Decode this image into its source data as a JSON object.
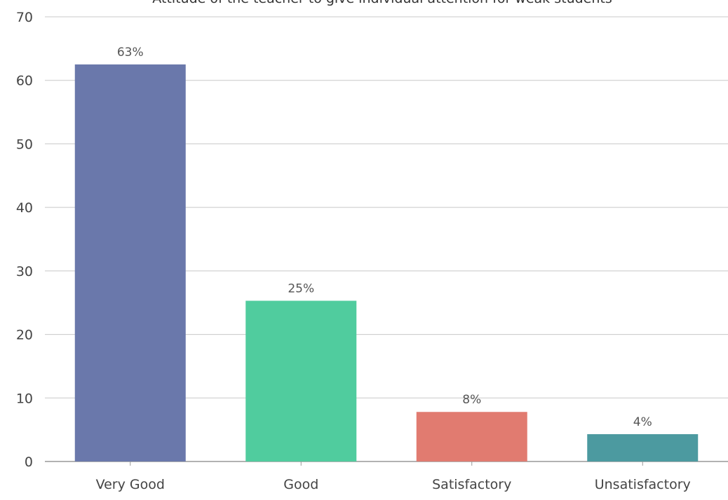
{
  "chart_data": {
    "type": "bar",
    "title": "Attitude of the teacher to give individual attention for weak students",
    "xlabel": "",
    "ylabel": "",
    "categories": [
      "Very Good",
      "Good",
      "Satisfactory",
      "Unsatisfactory"
    ],
    "values": [
      62.5,
      25.3,
      7.8,
      4.3
    ],
    "data_labels": [
      "63%",
      "25%",
      "8%",
      "4%"
    ],
    "bar_colors": [
      "#6a78ab",
      "#50cc9e",
      "#e17b70",
      "#4c9aa0"
    ],
    "ylim": [
      0,
      70
    ],
    "yticks": [
      "0",
      "10",
      "20",
      "30",
      "40",
      "50",
      "60",
      "70"
    ],
    "grid": true,
    "legend": "none"
  }
}
